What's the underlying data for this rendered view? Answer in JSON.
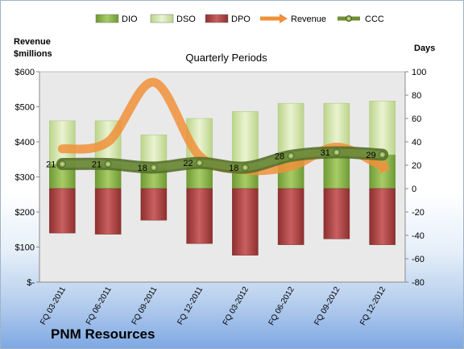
{
  "company": "PNM Resources",
  "chart_data": {
    "type": "bar",
    "title": "Quarterly Periods",
    "left_axis_label_line1": "Revenue",
    "left_axis_label_line2": "$millions",
    "right_axis_label": "Days",
    "categories": [
      "FQ 03-2011",
      "FQ 06-2011",
      "FQ 09-2011",
      "FQ 12-2011",
      "FQ 03-2012",
      "FQ 06-2012",
      "FQ 09-2012",
      "FQ 12-2012"
    ],
    "left_axis": {
      "min": 0,
      "max": 600,
      "step": 100,
      "tick_labels": [
        "$-",
        "$100",
        "$200",
        "$300",
        "$400",
        "$500",
        "$600"
      ]
    },
    "right_axis": {
      "min": -80,
      "max": 100,
      "step": 20,
      "tick_labels": [
        "-80",
        "-60",
        "-40",
        "-20",
        "0",
        "20",
        "40",
        "60",
        "80",
        "100"
      ]
    },
    "legend_position": "top",
    "grid": false,
    "series": [
      {
        "name": "DIO",
        "type": "stacked-bar",
        "axis": "right",
        "color": "#8db94e",
        "values": [
          21,
          21,
          18,
          22,
          18,
          28,
          31,
          29
        ]
      },
      {
        "name": "DSO",
        "type": "stacked-bar",
        "axis": "right",
        "color": "#d7e7b2",
        "values": [
          37,
          37,
          28,
          38,
          48,
          45,
          42,
          46
        ]
      },
      {
        "name": "DPO",
        "type": "stacked-bar-negative",
        "axis": "right",
        "color": "#b44a4a",
        "values": [
          -38,
          -39,
          -27,
          -47,
          -57,
          -48,
          -43,
          -48
        ]
      },
      {
        "name": "Revenue",
        "type": "line",
        "axis": "left",
        "color": "#f0913a",
        "values": [
          380,
          400,
          570,
          360,
          320,
          330,
          385,
          330
        ]
      },
      {
        "name": "CCC",
        "type": "line",
        "axis": "right",
        "color": "#6e8f35",
        "values": [
          21,
          21,
          18,
          22,
          18,
          28,
          31,
          29
        ],
        "labels": [
          "21",
          "21",
          "18",
          "22",
          "18",
          "28",
          "31",
          "29"
        ]
      }
    ]
  }
}
